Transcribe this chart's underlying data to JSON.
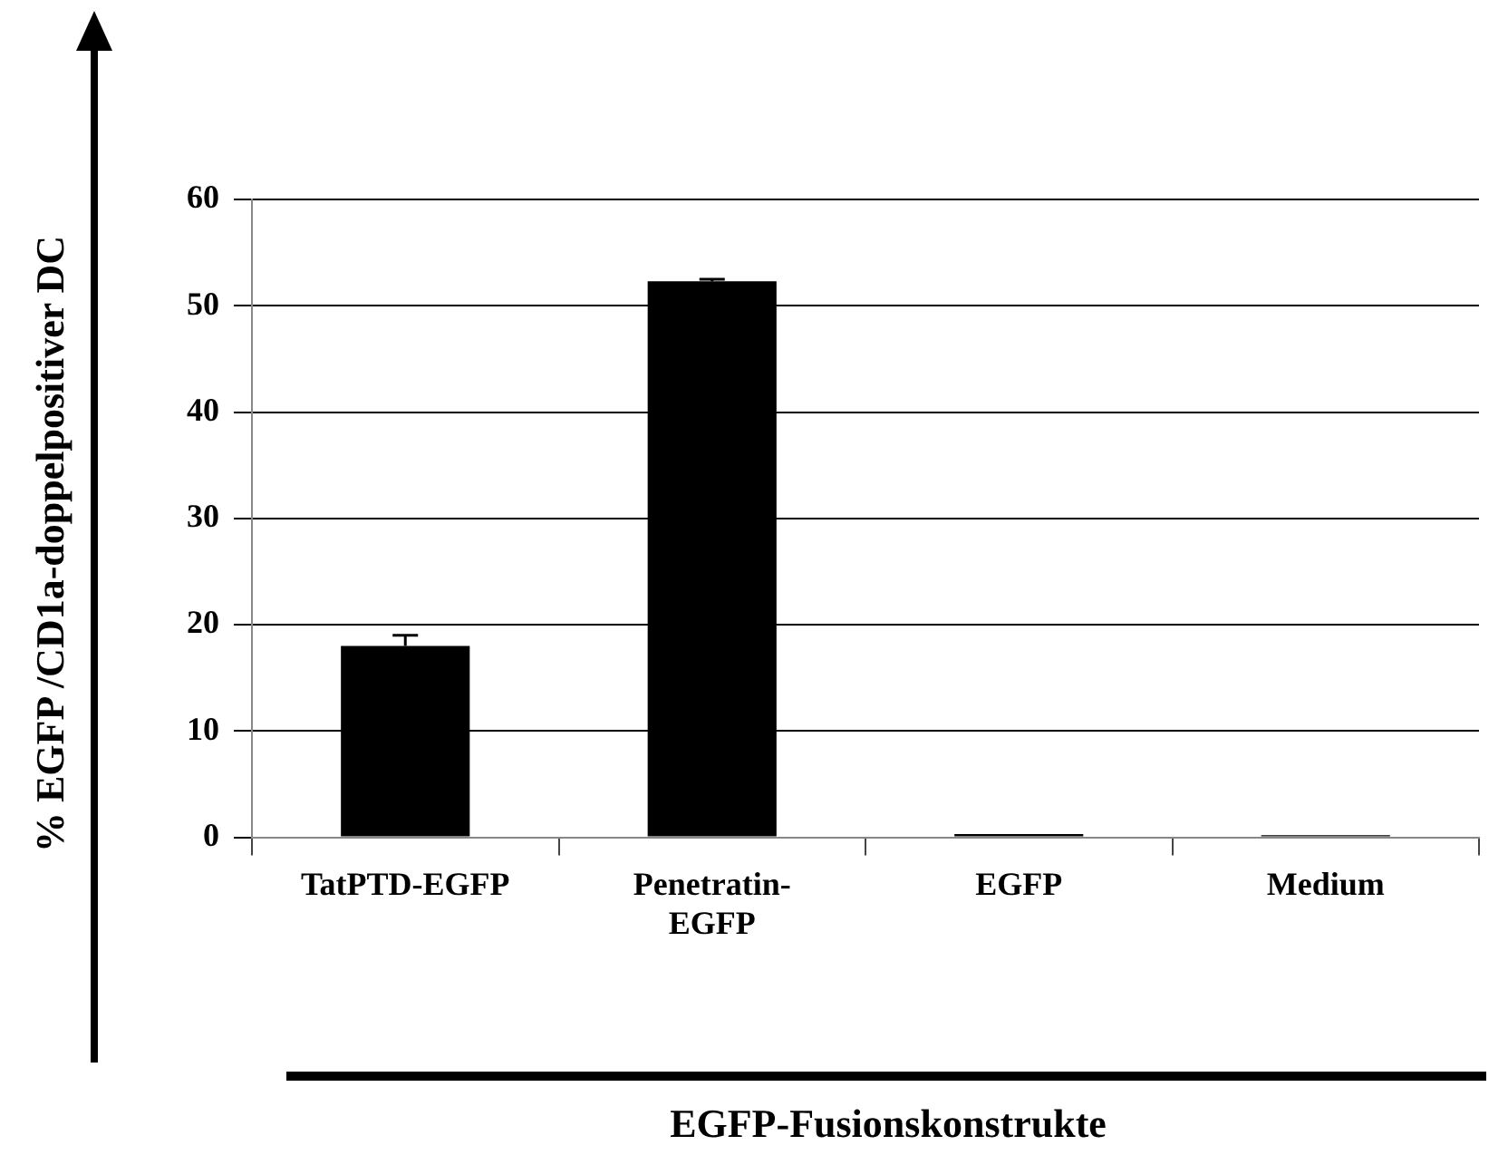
{
  "chart_data": {
    "type": "bar",
    "xlabel": "EGFP-Fusionskonstrukte",
    "ylabel": "% EGFP /CD1a-doppelpositiver DC",
    "categories": [
      "TatPTD-EGFP",
      "Penetratin-EGFP",
      "EGFP",
      "Medium"
    ],
    "values": [
      18,
      52.3,
      0.3,
      0.2
    ],
    "errors": [
      1,
      0.2,
      null,
      null
    ],
    "color": "#000000",
    "ylim": [
      0,
      60
    ],
    "yticks": [
      0,
      10,
      20,
      30,
      40,
      50,
      60
    ],
    "grid": "y"
  }
}
